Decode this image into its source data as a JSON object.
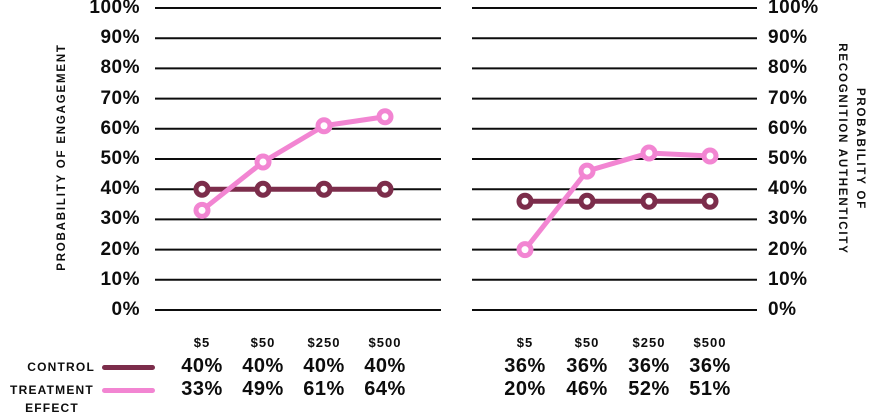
{
  "colors": {
    "control": "#7C2D4B",
    "treatment": "#F285D2",
    "grid": "#0d0d0d",
    "text": "#0d0d0d"
  },
  "legend": {
    "entries": [
      {
        "label": "CONTROL",
        "color_key": "control"
      },
      {
        "label_lines": [
          "TREATMENT",
          "EFFECT"
        ],
        "color_key": "treatment"
      }
    ]
  },
  "chart_data": [
    {
      "type": "line",
      "title": "",
      "categories": [
        "$5",
        "$50",
        "$250",
        "$500"
      ],
      "series": [
        {
          "name": "CONTROL",
          "color_key": "control",
          "values": [
            40,
            40,
            40,
            40
          ]
        },
        {
          "name": "TREATMENT EFFECT",
          "color_key": "treatment",
          "values": [
            33,
            49,
            61,
            64
          ]
        }
      ],
      "ylabel": "PROBABILITY OF ENGAGEMENT",
      "ylim": [
        0,
        100
      ],
      "ytick_labels": [
        "100%",
        "90%",
        "80%",
        "70%",
        "60%",
        "50%",
        "40%",
        "30%",
        "20%",
        "10%",
        "0%"
      ],
      "grid": true,
      "tick_side": "left",
      "legend_position": "bottom-left"
    },
    {
      "type": "line",
      "title": "",
      "categories": [
        "$5",
        "$50",
        "$250",
        "$500"
      ],
      "series": [
        {
          "name": "CONTROL",
          "color_key": "control",
          "values": [
            36,
            36,
            36,
            36
          ]
        },
        {
          "name": "TREATMENT EFFECT",
          "color_key": "treatment",
          "values": [
            20,
            46,
            52,
            51
          ]
        }
      ],
      "ylabel": "PROBABILITY OF RECOGNITION AUTHENTICITY",
      "ylabel_lines": [
        "PROBABILITY OF",
        "RECOGNITION AUTHENTICITY"
      ],
      "ylim": [
        0,
        100
      ],
      "ytick_labels": [
        "100%",
        "90%",
        "80%",
        "70%",
        "60%",
        "50%",
        "40%",
        "30%",
        "20%",
        "10%",
        "0%"
      ],
      "grid": true,
      "tick_side": "right",
      "legend_position": "bottom-left"
    }
  ],
  "tables": [
    {
      "headers": [
        "$5",
        "$50",
        "$250",
        "$500"
      ],
      "rows": [
        [
          "40%",
          "40%",
          "40%",
          "40%"
        ],
        [
          "33%",
          "49%",
          "61%",
          "64%"
        ]
      ]
    },
    {
      "headers": [
        "$5",
        "$50",
        "$250",
        "$500"
      ],
      "rows": [
        [
          "36%",
          "36%",
          "36%",
          "36%"
        ],
        [
          "20%",
          "46%",
          "52%",
          "51%"
        ]
      ]
    }
  ]
}
